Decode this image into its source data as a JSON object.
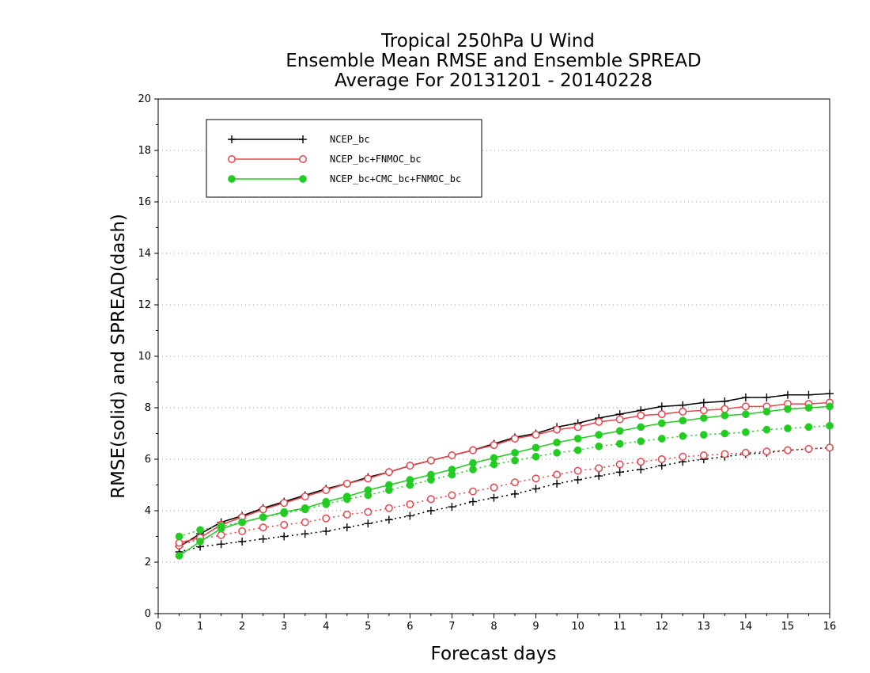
{
  "chart_data": {
    "type": "line",
    "title": [
      "Tropical 250hPa U Wind",
      "Ensemble Mean RMSE and Ensemble SPREAD",
      "Average For 20131201 - 20140228"
    ],
    "xlabel": "Forecast days",
    "ylabel": "RMSE(solid) and SPREAD(dash)",
    "xlim": [
      0,
      16
    ],
    "ylim": [
      0,
      20
    ],
    "xticks": [
      "0",
      "1",
      "2",
      "3",
      "4",
      "5",
      "6",
      "7",
      "8",
      "9",
      "10",
      "11",
      "12",
      "13",
      "14",
      "15",
      "16"
    ],
    "yticks": [
      "0",
      "2",
      "4",
      "6",
      "8",
      "10",
      "12",
      "14",
      "16",
      "18",
      "20"
    ],
    "grid": "horizontal dotted",
    "legend_position": "top-left",
    "x": [
      0.5,
      1,
      1.5,
      2,
      2.5,
      3,
      3.5,
      4,
      4.5,
      5,
      5.5,
      6,
      6.5,
      7,
      7.5,
      8,
      8.5,
      9,
      9.5,
      10,
      10.5,
      11,
      11.5,
      12,
      12.5,
      13,
      13.5,
      14,
      14.5,
      15,
      15.5,
      16
    ],
    "series": [
      {
        "name": "NCEP_bc",
        "color": "#000000",
        "marker": "plus",
        "rmse": [
          2.6,
          3.1,
          3.55,
          3.8,
          4.1,
          4.35,
          4.6,
          4.85,
          5.05,
          5.3,
          5.5,
          5.75,
          5.95,
          6.15,
          6.35,
          6.6,
          6.85,
          7.0,
          7.25,
          7.4,
          7.6,
          7.75,
          7.9,
          8.05,
          8.1,
          8.2,
          8.25,
          8.4,
          8.4,
          8.5,
          8.5,
          8.55
        ],
        "spread": [
          2.4,
          2.6,
          2.7,
          2.8,
          2.9,
          3.0,
          3.1,
          3.2,
          3.35,
          3.5,
          3.65,
          3.8,
          4.0,
          4.15,
          4.35,
          4.5,
          4.65,
          4.85,
          5.05,
          5.2,
          5.35,
          5.5,
          5.6,
          5.75,
          5.9,
          6.0,
          6.1,
          6.2,
          6.25,
          6.35,
          6.4,
          6.45
        ]
      },
      {
        "name": "NCEP_bc+FNMOC_bc",
        "color": "#e8434b",
        "marker": "open-circle",
        "rmse": [
          2.75,
          2.95,
          3.45,
          3.75,
          4.05,
          4.3,
          4.55,
          4.8,
          5.05,
          5.25,
          5.5,
          5.75,
          5.95,
          6.15,
          6.35,
          6.55,
          6.8,
          6.95,
          7.15,
          7.25,
          7.45,
          7.55,
          7.7,
          7.75,
          7.85,
          7.9,
          7.95,
          8.05,
          8.05,
          8.15,
          8.15,
          8.2
        ],
        "spread": [
          2.65,
          2.9,
          3.05,
          3.2,
          3.35,
          3.45,
          3.55,
          3.7,
          3.85,
          3.95,
          4.1,
          4.25,
          4.45,
          4.6,
          4.75,
          4.9,
          5.1,
          5.25,
          5.4,
          5.55,
          5.65,
          5.8,
          5.9,
          6.0,
          6.1,
          6.15,
          6.2,
          6.25,
          6.3,
          6.35,
          6.4,
          6.45
        ]
      },
      {
        "name": "NCEP_bc+CMC_bc+FNMOC_bc",
        "color": "#22cc22",
        "marker": "filled-circle",
        "rmse": [
          2.25,
          2.8,
          3.3,
          3.55,
          3.75,
          3.95,
          4.1,
          4.35,
          4.55,
          4.8,
          5.0,
          5.2,
          5.4,
          5.6,
          5.85,
          6.05,
          6.25,
          6.45,
          6.65,
          6.8,
          6.95,
          7.1,
          7.25,
          7.4,
          7.5,
          7.6,
          7.7,
          7.75,
          7.85,
          7.95,
          8.0,
          8.05
        ],
        "spread": [
          3.0,
          3.25,
          3.4,
          3.55,
          3.75,
          3.9,
          4.05,
          4.25,
          4.45,
          4.6,
          4.8,
          5.0,
          5.2,
          5.4,
          5.6,
          5.8,
          5.95,
          6.1,
          6.25,
          6.35,
          6.5,
          6.6,
          6.7,
          6.8,
          6.9,
          6.95,
          7.0,
          7.05,
          7.15,
          7.2,
          7.25,
          7.3
        ]
      }
    ]
  }
}
